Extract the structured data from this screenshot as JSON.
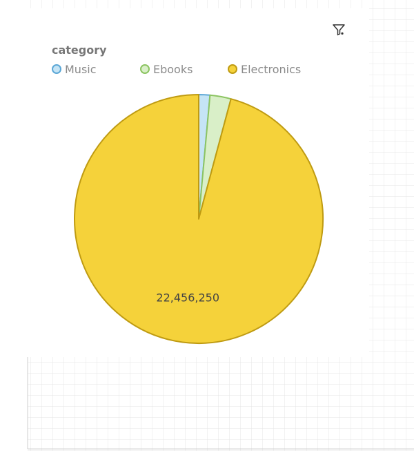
{
  "chart_data": {
    "type": "pie",
    "legend_title": "category",
    "legend_position": "top-left",
    "categories": [
      "Music",
      "Ebooks",
      "Electronics"
    ],
    "values": [
      340000,
      640000,
      22456250
    ],
    "colors": [
      "#c5e4f5",
      "#d9efc8",
      "#f5d23a"
    ],
    "stroke_colors": [
      "#5ba7d6",
      "#8cc462",
      "#bf9b12"
    ],
    "data_labels": [
      "",
      "",
      "22,456,250"
    ]
  },
  "icons": {
    "filter": "filter-icon"
  }
}
